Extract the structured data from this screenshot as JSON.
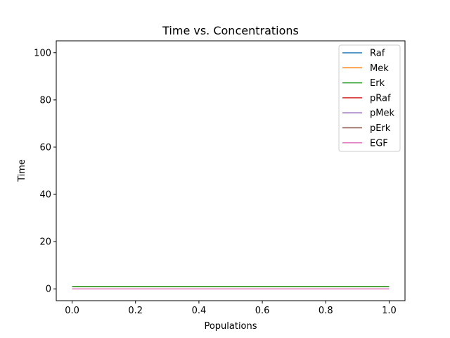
{
  "chart_data": {
    "type": "line",
    "title": "Time vs. Concentrations",
    "xlabel": "Populations",
    "ylabel": "Time",
    "xlim": [
      -0.05,
      1.05
    ],
    "ylim": [
      -5,
      105
    ],
    "xticks": [
      0.0,
      0.2,
      0.4,
      0.6,
      0.8,
      1.0
    ],
    "xtick_labels": [
      "0.0",
      "0.2",
      "0.4",
      "0.6",
      "0.8",
      "1.0"
    ],
    "yticks": [
      0,
      20,
      40,
      60,
      80,
      100
    ],
    "ytick_labels": [
      "0",
      "20",
      "40",
      "60",
      "80",
      "100"
    ],
    "grid": false,
    "legend_position": "top-right",
    "series": [
      {
        "name": "Raf",
        "color": "#1f77b4",
        "x": [
          0.0,
          1.0
        ],
        "y": [
          1,
          1
        ]
      },
      {
        "name": "Mek",
        "color": "#ff7f0e",
        "x": [
          0.0,
          1.0
        ],
        "y": [
          1,
          1
        ]
      },
      {
        "name": "Erk",
        "color": "#2ca02c",
        "x": [
          0.0,
          1.0
        ],
        "y": [
          1,
          1
        ]
      },
      {
        "name": "pRaf",
        "color": "#d62728",
        "x": [
          0.0,
          1.0
        ],
        "y": [
          0,
          0
        ]
      },
      {
        "name": "pMek",
        "color": "#9467bd",
        "x": [
          0.0,
          1.0
        ],
        "y": [
          0,
          0
        ]
      },
      {
        "name": "pErk",
        "color": "#8c564b",
        "x": [
          0.0,
          1.0
        ],
        "y": [
          0,
          0
        ]
      },
      {
        "name": "EGF",
        "color": "#e377c2",
        "x": [
          0.0,
          1.0
        ],
        "y": [
          0,
          0
        ]
      }
    ]
  }
}
